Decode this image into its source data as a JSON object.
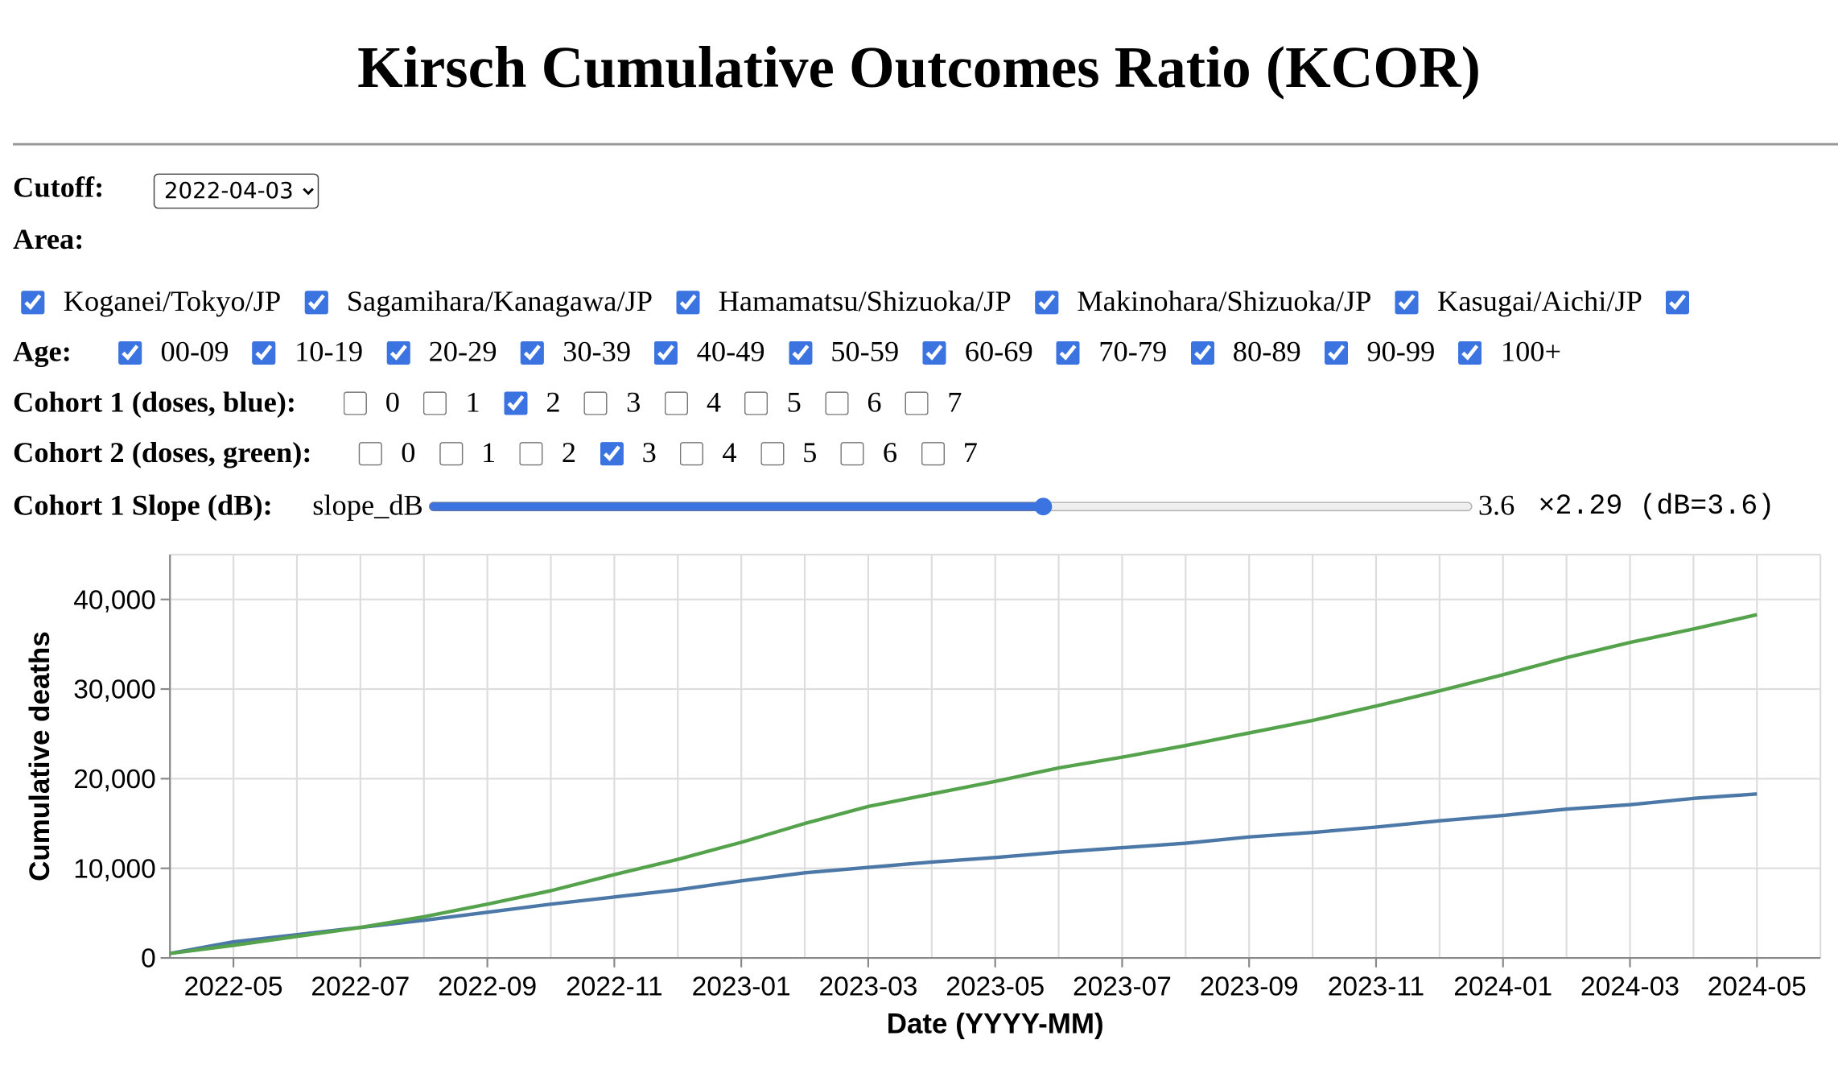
{
  "header": {
    "title": "Kirsch Cumulative Outcomes Ratio (KCOR)"
  },
  "cutoff": {
    "label": "Cutoff:",
    "value": "2022-04-03"
  },
  "area": {
    "label": "Area:",
    "options": [
      {
        "label": "Koganei/Tokyo/JP",
        "checked": true
      },
      {
        "label": "Sagamihara/Kanagawa/JP",
        "checked": true
      },
      {
        "label": "Hamamatsu/Shizuoka/JP",
        "checked": true
      },
      {
        "label": "Makinohara/Shizuoka/JP",
        "checked": true
      },
      {
        "label": "Kasugai/Aichi/JP",
        "checked": true
      }
    ]
  },
  "age": {
    "label": "Age:",
    "options": [
      {
        "label": "00-09",
        "checked": true
      },
      {
        "label": "10-19",
        "checked": true
      },
      {
        "label": "20-29",
        "checked": true
      },
      {
        "label": "30-39",
        "checked": true
      },
      {
        "label": "40-49",
        "checked": true
      },
      {
        "label": "50-59",
        "checked": true
      },
      {
        "label": "60-69",
        "checked": true
      },
      {
        "label": "70-79",
        "checked": true
      },
      {
        "label": "80-89",
        "checked": true
      },
      {
        "label": "90-99",
        "checked": true
      },
      {
        "label": "100+",
        "checked": true
      }
    ]
  },
  "cohort1": {
    "label": "Cohort 1 (doses, blue):",
    "options": [
      {
        "label": "0",
        "checked": false
      },
      {
        "label": "1",
        "checked": false
      },
      {
        "label": "2",
        "checked": true
      },
      {
        "label": "3",
        "checked": false
      },
      {
        "label": "4",
        "checked": false
      },
      {
        "label": "5",
        "checked": false
      },
      {
        "label": "6",
        "checked": false
      },
      {
        "label": "7",
        "checked": false
      }
    ]
  },
  "cohort2": {
    "label": "Cohort 2 (doses, green):",
    "options": [
      {
        "label": "0",
        "checked": false
      },
      {
        "label": "1",
        "checked": false
      },
      {
        "label": "2",
        "checked": false
      },
      {
        "label": "3",
        "checked": true
      },
      {
        "label": "4",
        "checked": false
      },
      {
        "label": "5",
        "checked": false
      },
      {
        "label": "6",
        "checked": false
      },
      {
        "label": "7",
        "checked": false
      }
    ]
  },
  "slope": {
    "label": "Cohort 1 Slope (dB):",
    "name": "slope_dB",
    "value": 3.6,
    "readout": "×2.29 (dB=3.6)"
  },
  "chart_data": {
    "type": "line",
    "x_label": "Date (YYYY-MM)",
    "y_label": "Cumulative deaths",
    "x": [
      "2022-04",
      "2022-05",
      "2022-06",
      "2022-07",
      "2022-08",
      "2022-09",
      "2022-10",
      "2022-11",
      "2022-12",
      "2023-01",
      "2023-02",
      "2023-03",
      "2023-04",
      "2023-05",
      "2023-06",
      "2023-07",
      "2023-08",
      "2023-09",
      "2023-10",
      "2023-11",
      "2023-12",
      "2024-01",
      "2024-02",
      "2024-03",
      "2024-04",
      "2024-05"
    ],
    "series": [
      {
        "name": "Cohort 1",
        "color": "#4c78a8",
        "values": [
          500,
          1800,
          2600,
          3400,
          4200,
          5100,
          6000,
          6800,
          7600,
          8600,
          9500,
          10100,
          10700,
          11200,
          11800,
          12300,
          12800,
          13500,
          14000,
          14600,
          15300,
          15900,
          16600,
          17100,
          17800,
          18300
        ]
      },
      {
        "name": "Cohort 2",
        "color": "#54a24b",
        "values": [
          500,
          1400,
          2400,
          3400,
          4600,
          6000,
          7500,
          9300,
          11000,
          12900,
          15000,
          16900,
          18300,
          19700,
          21200,
          22400,
          23700,
          25100,
          26500,
          28100,
          29800,
          31600,
          33500,
          35200,
          36700,
          38300
        ]
      }
    ],
    "xlim": [
      "2022-04",
      "2024-06"
    ],
    "xticks": [
      "2022-05",
      "2022-07",
      "2022-09",
      "2022-11",
      "2023-01",
      "2023-03",
      "2023-05",
      "2023-07",
      "2023-09",
      "2023-11",
      "2024-01",
      "2024-03",
      "2024-05"
    ],
    "ylim": [
      0,
      45000
    ],
    "yticks": [
      0,
      {
        "value": 10000,
        "label": "10,000"
      },
      {
        "value": 20000,
        "label": "20,000"
      },
      {
        "value": 30000,
        "label": "30,000"
      },
      {
        "value": 40000,
        "label": "40,000"
      }
    ],
    "grid": true
  }
}
